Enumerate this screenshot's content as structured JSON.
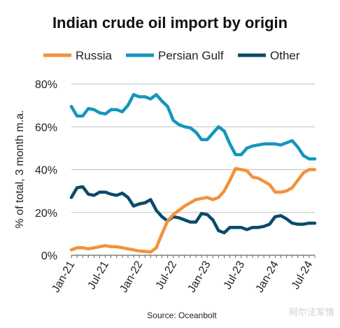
{
  "watermark": "阿尔法军情",
  "chart_data": {
    "type": "line",
    "title": "Indian crude oil import by origin",
    "ylabel": "% of total, 3 month m.a.",
    "xlabel": "",
    "source": "Source: Oceanbolt",
    "x": [
      "Jan-21",
      "Feb-21",
      "Mar-21",
      "Apr-21",
      "May-21",
      "Jun-21",
      "Jul-21",
      "Aug-21",
      "Sep-21",
      "Oct-21",
      "Nov-21",
      "Dec-21",
      "Jan-22",
      "Feb-22",
      "Mar-22",
      "Apr-22",
      "May-22",
      "Jun-22",
      "Jul-22",
      "Aug-22",
      "Sep-22",
      "Oct-22",
      "Nov-22",
      "Dec-22",
      "Jan-23",
      "Feb-23",
      "Mar-23",
      "Apr-23",
      "May-23",
      "Jun-23",
      "Jul-23",
      "Aug-23",
      "Sep-23",
      "Oct-23",
      "Nov-23",
      "Dec-23",
      "Jan-24",
      "Feb-24",
      "Mar-24",
      "Apr-24",
      "May-24",
      "Jun-24",
      "Jul-24",
      "Aug-24"
    ],
    "x_tick_labels": [
      "Jan-21",
      "Jul-21",
      "Jan-22",
      "Jul-22",
      "Jan-23",
      "Jul-23",
      "Jan-24",
      "Jul-24"
    ],
    "ylim": [
      0,
      80
    ],
    "y_tick_labels": [
      "0%",
      "20%",
      "40%",
      "60%",
      "80%"
    ],
    "y_ticks": [
      0,
      20,
      40,
      60,
      80
    ],
    "grid": true,
    "legend_position": "top",
    "series": [
      {
        "name": "Russia",
        "color": "#F2923A",
        "values": [
          2.5,
          3.5,
          3.5,
          3,
          3.5,
          4,
          4.5,
          4,
          4,
          3.5,
          3,
          2.5,
          2,
          1.8,
          1.5,
          3.5,
          10,
          16,
          19,
          21,
          23,
          24.5,
          26,
          26.5,
          27,
          26,
          27,
          30,
          35,
          40.5,
          40,
          39.5,
          36.5,
          36,
          34.5,
          33,
          29.5,
          29.5,
          30,
          31.5,
          35,
          38.5,
          40,
          40
        ]
      },
      {
        "name": "Persian Gulf",
        "color": "#1496BD",
        "values": [
          69.5,
          65,
          65,
          68.5,
          68,
          66.5,
          66,
          68,
          68,
          67,
          70,
          75,
          74,
          74,
          73,
          75,
          72,
          69.5,
          63,
          61,
          60,
          59.5,
          57.5,
          54,
          54,
          57,
          60,
          58,
          52,
          47,
          47,
          50,
          51,
          51.5,
          52,
          52,
          52,
          51.5,
          52.5,
          53.5,
          50.5,
          46.5,
          45,
          45
        ]
      },
      {
        "name": "Other",
        "color": "#0B4A6B",
        "values": [
          27,
          31.5,
          32,
          28.5,
          28,
          29.5,
          29.5,
          28.5,
          28,
          29,
          27,
          23,
          24,
          24.5,
          26,
          21,
          18,
          16,
          18,
          17.5,
          16.5,
          15.5,
          15.5,
          19.5,
          19,
          16.5,
          11.5,
          10.5,
          13,
          13,
          13,
          12,
          13,
          13,
          13.5,
          14.5,
          18,
          18.5,
          17,
          15,
          14.5,
          14.5,
          15,
          15
        ]
      }
    ]
  }
}
